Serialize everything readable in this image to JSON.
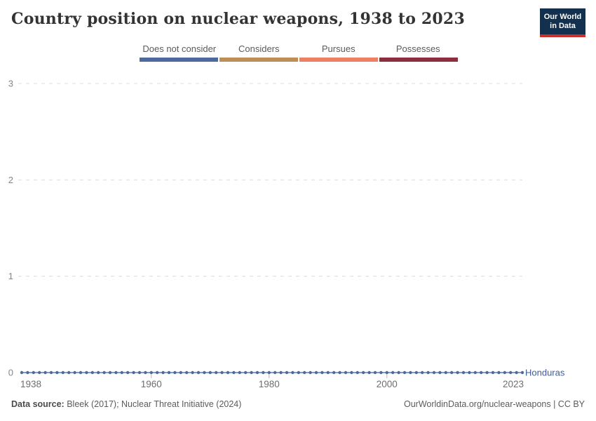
{
  "header": {
    "title": "Country position on nuclear weapons, 1938 to 2023",
    "logo": {
      "line1": "Our World",
      "line2": "in Data"
    }
  },
  "legend": {
    "items": [
      {
        "label": "Does not consider",
        "color": "#4C6A9C"
      },
      {
        "label": "Considers",
        "color": "#BE8E55"
      },
      {
        "label": "Pursues",
        "color": "#ED7F63"
      },
      {
        "label": "Possesses",
        "color": "#8C2E3D"
      }
    ]
  },
  "chart_data": {
    "type": "line",
    "title": "Country position on nuclear weapons, 1938 to 2023",
    "xlim": [
      1938,
      2023
    ],
    "ylim": [
      0,
      3
    ],
    "x_ticks": [
      1938,
      1960,
      1980,
      2000,
      2023
    ],
    "y_ticks": [
      0,
      1,
      2,
      3
    ],
    "grid": "horizontal-dashed",
    "gridline_color": "#dcdcdc",
    "axis_label_color": "#6e6e6e",
    "y_label_color": "#858585",
    "value_scale_labels": {
      "0": "Does not consider",
      "1": "Considers",
      "2": "Pursues",
      "3": "Possesses"
    },
    "series": [
      {
        "name": "Honduras",
        "years_start": 1938,
        "years_end": 2023,
        "values": [
          0,
          0,
          0,
          0,
          0,
          0,
          0,
          0,
          0,
          0,
          0,
          0,
          0,
          0,
          0,
          0,
          0,
          0,
          0,
          0,
          0,
          0,
          0,
          0,
          0,
          0,
          0,
          0,
          0,
          0,
          0,
          0,
          0,
          0,
          0,
          0,
          0,
          0,
          0,
          0,
          0,
          0,
          0,
          0,
          0,
          0,
          0,
          0,
          0,
          0,
          0,
          0,
          0,
          0,
          0,
          0,
          0,
          0,
          0,
          0,
          0,
          0,
          0,
          0,
          0,
          0,
          0,
          0,
          0,
          0,
          0,
          0,
          0,
          0,
          0,
          0,
          0,
          0,
          0,
          0,
          0,
          0,
          0,
          0,
          0,
          0
        ],
        "marker_color": "#4C6A9C",
        "line_color": "#5D79AC",
        "label_color": "#3D5A99"
      }
    ]
  },
  "footer": {
    "datasource_label": "Data source:",
    "datasource_value": " Bleek (2017); Nuclear Threat Initiative (2024)",
    "attribution": "OurWorldinData.org/nuclear-weapons | CC BY"
  }
}
